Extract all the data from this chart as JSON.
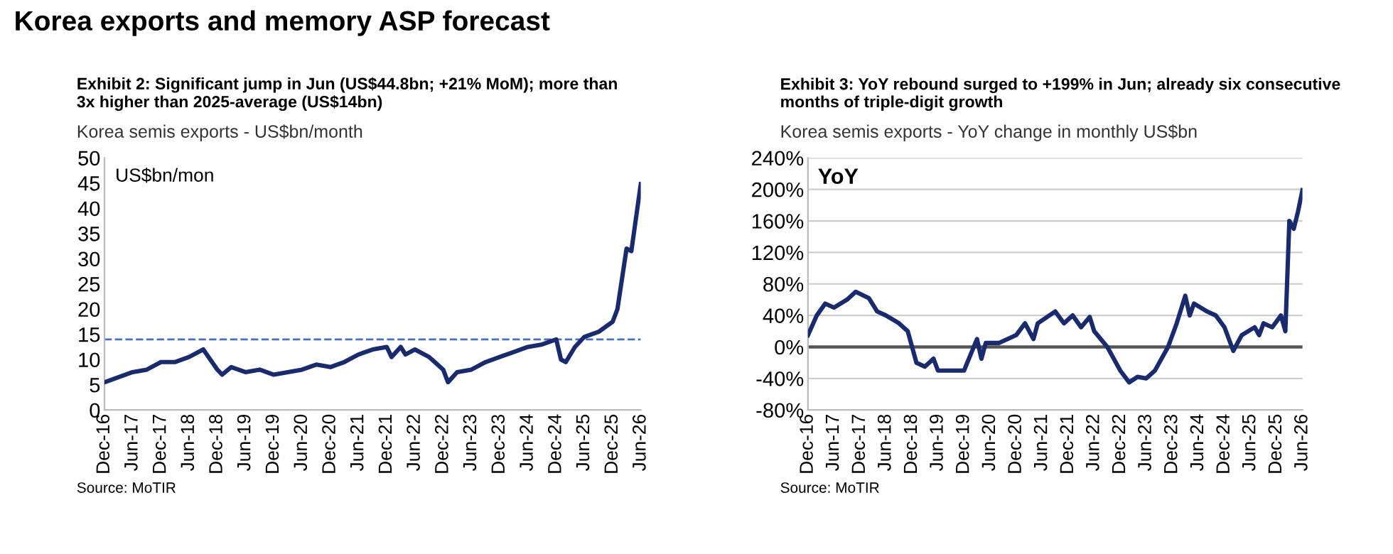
{
  "chart_data": [
    {
      "type": "line",
      "title": "Exhibit 2: Significant jump in Jun (US$44.8bn; +21% MoM); more than\n3x higher than 2025-average (US$14bn)",
      "subtitle": "Korea semis exports - US$bn/month",
      "ylabel": "US$bn/mon",
      "annotations": [
        "Korea exports and memory ASP forecast",
        "Source: MoTIR"
      ],
      "x": [
        "2016-12",
        "2017-03",
        "2017-06",
        "2017-09",
        "2017-12",
        "2018-03",
        "2018-06",
        "2018-09",
        "2018-12",
        "2019-01",
        "2019-03",
        "2019-06",
        "2019-09",
        "2019-12",
        "2020-03",
        "2020-06",
        "2020-09",
        "2020-12",
        "2021-03",
        "2021-06",
        "2021-09",
        "2021-12",
        "2022-01",
        "2022-03",
        "2022-04",
        "2022-06",
        "2022-09",
        "2022-12",
        "2023-01",
        "2023-03",
        "2023-06",
        "2023-09",
        "2023-12",
        "2024-03",
        "2024-06",
        "2024-09",
        "2024-12",
        "2025-01",
        "2025-02",
        "2025-04",
        "2025-06",
        "2025-09",
        "2025-12",
        "2026-01",
        "2026-03",
        "2026-04",
        "2026-06"
      ],
      "series": [
        {
          "color": "#1a2b6d",
          "values": [
            5.5,
            6.5,
            7.5,
            8.0,
            9.5,
            9.5,
            10.5,
            12.0,
            8.0,
            7.0,
            8.5,
            7.5,
            8.0,
            7.0,
            7.5,
            8.0,
            9.0,
            8.5,
            9.5,
            11.0,
            12.0,
            12.5,
            10.5,
            12.5,
            11.0,
            12.0,
            10.5,
            8.0,
            5.5,
            7.5,
            8.0,
            9.5,
            10.5,
            11.5,
            12.5,
            13.0,
            14.0,
            10.0,
            9.5,
            12.5,
            14.5,
            15.5,
            17.5,
            20.0,
            32.0,
            31.5,
            44.8
          ]
        }
      ],
      "xlim": [
        "2016-12",
        "2026-06"
      ],
      "xticks": [
        {
          "value": "2016-12",
          "label": "Dec-16"
        },
        {
          "value": "2017-06",
          "label": "Jun-17"
        },
        {
          "value": "2017-12",
          "label": "Dec-17"
        },
        {
          "value": "2018-06",
          "label": "Jun-18"
        },
        {
          "value": "2018-12",
          "label": "Dec-18"
        },
        {
          "value": "2019-06",
          "label": "Jun-19"
        },
        {
          "value": "2019-12",
          "label": "Dec-19"
        },
        {
          "value": "2020-06",
          "label": "Jun-20"
        },
        {
          "value": "2020-12",
          "label": "Dec-20"
        },
        {
          "value": "2021-06",
          "label": "Jun-21"
        },
        {
          "value": "2021-12",
          "label": "Dec-21"
        },
        {
          "value": "2022-06",
          "label": "Jun-22"
        },
        {
          "value": "2022-12",
          "label": "Dec-22"
        },
        {
          "value": "2023-06",
          "label": "Jun-23"
        },
        {
          "value": "2023-12",
          "label": "Dec-23"
        },
        {
          "value": "2024-06",
          "label": "Jun-24"
        },
        {
          "value": "2024-12",
          "label": "Dec-24"
        },
        {
          "value": "2025-06",
          "label": "Jun-25"
        },
        {
          "value": "2025-12",
          "label": "Dec-25"
        },
        {
          "value": "2026-06",
          "label": "Jun-26"
        }
      ],
      "ylim": [
        0,
        50
      ],
      "yticks": [
        0,
        5,
        10,
        15,
        20,
        25,
        30,
        35,
        40,
        45,
        50
      ],
      "ref_lines": [
        {
          "axis": "y",
          "value": 14,
          "color": "#4a6fc0",
          "line_style": "dashed"
        }
      ],
      "grid": false,
      "marker": "none",
      "line_style": "solid"
    },
    {
      "type": "line",
      "title": "Exhibit 3: YoY rebound surged to +199% in Jun; already six consecutive\nmonths of triple-digit growth",
      "subtitle": "Korea semis exports - YoY change in monthly US$bn",
      "ylabel": "YoY",
      "annotations": [
        "Source: MoTIR"
      ],
      "x": [
        "2016-12",
        "2017-02",
        "2017-04",
        "2017-06",
        "2017-09",
        "2017-11",
        "2018-02",
        "2018-04",
        "2018-06",
        "2018-09",
        "2018-11",
        "2019-01",
        "2019-03",
        "2019-05",
        "2019-06",
        "2019-09",
        "2019-12",
        "2020-03",
        "2020-04",
        "2020-05",
        "2020-08",
        "2020-12",
        "2021-02",
        "2021-04",
        "2021-05",
        "2021-09",
        "2021-11",
        "2022-01",
        "2022-03",
        "2022-05",
        "2022-06",
        "2022-09",
        "2022-12",
        "2023-02",
        "2023-04",
        "2023-06",
        "2023-08",
        "2023-11",
        "2024-01",
        "2024-03",
        "2024-04",
        "2024-05",
        "2024-08",
        "2024-10",
        "2024-12",
        "2025-02",
        "2025-04",
        "2025-07",
        "2025-08",
        "2025-09",
        "2025-11",
        "2026-01",
        "2026-02",
        "2026-03",
        "2026-04",
        "2026-05",
        "2026-06"
      ],
      "series": [
        {
          "color": "#1a2b6d",
          "values": [
            15,
            40,
            55,
            50,
            60,
            70,
            62,
            45,
            40,
            30,
            20,
            -20,
            -25,
            -15,
            -30,
            -30,
            -30,
            10,
            -15,
            5,
            5,
            15,
            30,
            10,
            30,
            45,
            30,
            40,
            25,
            38,
            20,
            0,
            -30,
            -45,
            -38,
            -40,
            -30,
            0,
            30,
            65,
            40,
            55,
            45,
            40,
            25,
            -5,
            15,
            25,
            15,
            30,
            25,
            40,
            20,
            160,
            150,
            172,
            199
          ]
        }
      ],
      "xlim": [
        "2016-12",
        "2026-06"
      ],
      "xticks": [
        {
          "value": "2016-12",
          "label": "Dec-16"
        },
        {
          "value": "2017-06",
          "label": "Jun-17"
        },
        {
          "value": "2017-12",
          "label": "Dec-17"
        },
        {
          "value": "2018-06",
          "label": "Jun-18"
        },
        {
          "value": "2018-12",
          "label": "Dec-18"
        },
        {
          "value": "2019-06",
          "label": "Jun-19"
        },
        {
          "value": "2019-12",
          "label": "Dec-19"
        },
        {
          "value": "2020-06",
          "label": "Jun-20"
        },
        {
          "value": "2020-12",
          "label": "Dec-20"
        },
        {
          "value": "2021-06",
          "label": "Jun-21"
        },
        {
          "value": "2021-12",
          "label": "Dec-21"
        },
        {
          "value": "2022-06",
          "label": "Jun-22"
        },
        {
          "value": "2022-12",
          "label": "Dec-22"
        },
        {
          "value": "2023-06",
          "label": "Jun-23"
        },
        {
          "value": "2023-12",
          "label": "Dec-23"
        },
        {
          "value": "2024-06",
          "label": "Jun-24"
        },
        {
          "value": "2024-12",
          "label": "Dec-24"
        },
        {
          "value": "2025-06",
          "label": "Jun-25"
        },
        {
          "value": "2025-12",
          "label": "Dec-25"
        },
        {
          "value": "2026-06",
          "label": "Jun-26"
        }
      ],
      "ylim": [
        -80,
        240
      ],
      "yticks": [
        {
          "value": -80,
          "label": "-80%"
        },
        {
          "value": -40,
          "label": "-40%"
        },
        {
          "value": 0,
          "label": "0%"
        },
        {
          "value": 40,
          "label": "40%"
        },
        {
          "value": 80,
          "label": "80%"
        },
        {
          "value": 120,
          "label": "120%"
        },
        {
          "value": 160,
          "label": "160%"
        },
        {
          "value": 200,
          "label": "200%"
        },
        {
          "value": 240,
          "label": "240%"
        }
      ],
      "ref_lines": [
        {
          "axis": "y",
          "value": 0,
          "color": "#555555",
          "line_style": "solid"
        }
      ],
      "grid": "y",
      "marker": "none",
      "line_style": "solid"
    }
  ]
}
